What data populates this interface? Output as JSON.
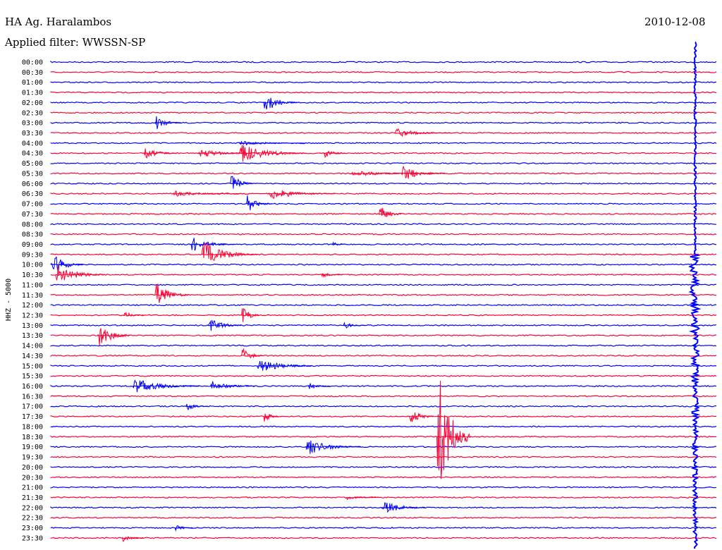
{
  "header": {
    "station": "HA Ag. Haralambos",
    "date": "2010-12-08",
    "filter": "Applied filter: WWSSN-SP"
  },
  "colors": {
    "trace_a": "#0000ff",
    "trace_b": "#ff0033",
    "text": "#000000",
    "background": "#ffffff"
  },
  "chart_data": {
    "type": "line",
    "title": "HA Ag. Haralambos",
    "subtitle": "Applied filter: WWSSN-SP",
    "ylabel": "HHZ - 5000",
    "grid": false,
    "legend": "none",
    "series_colors_alternate": [
      "#0000ff",
      "#ff0033"
    ],
    "categories": [
      "00:00",
      "00:30",
      "01:00",
      "01:30",
      "02:00",
      "02:30",
      "03:00",
      "03:30",
      "04:00",
      "04:30",
      "05:00",
      "05:30",
      "06:00",
      "06:30",
      "07:00",
      "07:30",
      "08:00",
      "08:30",
      "09:00",
      "09:30",
      "10:00",
      "10:30",
      "11:00",
      "11:30",
      "12:00",
      "12:30",
      "13:00",
      "13:30",
      "14:00",
      "14:30",
      "15:00",
      "15:30",
      "16:00",
      "16:30",
      "17:00",
      "17:30",
      "18:00",
      "18:30",
      "19:00",
      "19:30",
      "20:00",
      "20:30",
      "21:00",
      "21:30",
      "22:00",
      "22:30",
      "23:00",
      "23:30"
    ],
    "events": [
      {
        "row": "02:00",
        "minute": 9.6,
        "amp": 1.5,
        "dur": 1.5
      },
      {
        "row": "03:00",
        "minute": 4.7,
        "amp": 1.0,
        "dur": 1.2
      },
      {
        "row": "03:30",
        "minute": 15.5,
        "amp": 0.6,
        "dur": 2.5
      },
      {
        "row": "04:00",
        "minute": 8.5,
        "amp": 0.3,
        "dur": 3
      },
      {
        "row": "04:30",
        "minute": 4.2,
        "amp": 0.8,
        "dur": 1.5
      },
      {
        "row": "04:30",
        "minute": 6.6,
        "amp": 0.6,
        "dur": 2.5
      },
      {
        "row": "04:30",
        "minute": 8.5,
        "amp": 1.3,
        "dur": 3
      },
      {
        "row": "04:30",
        "minute": 12.3,
        "amp": 0.7,
        "dur": 1
      },
      {
        "row": "05:30",
        "minute": 15.8,
        "amp": 1.1,
        "dur": 2
      },
      {
        "row": "05:30",
        "minute": 13.5,
        "amp": 0.4,
        "dur": 4
      },
      {
        "row": "06:00",
        "minute": 8.1,
        "amp": 1.5,
        "dur": 1
      },
      {
        "row": "06:30",
        "minute": 9.8,
        "amp": 0.8,
        "dur": 3
      },
      {
        "row": "06:30",
        "minute": 5.5,
        "amp": 0.4,
        "dur": 3
      },
      {
        "row": "07:00",
        "minute": 8.8,
        "amp": 1.3,
        "dur": 1.2
      },
      {
        "row": "07:30",
        "minute": 14.8,
        "amp": 1.4,
        "dur": 1
      },
      {
        "row": "09:00",
        "minute": 6.3,
        "amp": 1.0,
        "dur": 2
      },
      {
        "row": "09:00",
        "minute": 12.7,
        "amp": 0.4,
        "dur": 0.5
      },
      {
        "row": "09:30",
        "minute": 6.8,
        "amp": 1.8,
        "dur": 2.5
      },
      {
        "row": "10:00",
        "minute": 0.0,
        "amp": 1.6,
        "dur": 1.5
      },
      {
        "row": "10:30",
        "minute": 0.2,
        "amp": 1.5,
        "dur": 2.2
      },
      {
        "row": "10:30",
        "minute": 12.2,
        "amp": 0.4,
        "dur": 1
      },
      {
        "row": "11:30",
        "minute": 4.7,
        "amp": 1.8,
        "dur": 1.5
      },
      {
        "row": "12:30",
        "minute": 8.6,
        "amp": 1.4,
        "dur": 0.8
      },
      {
        "row": "12:30",
        "minute": 3.3,
        "amp": 0.5,
        "dur": 1
      },
      {
        "row": "13:00",
        "minute": 7.1,
        "amp": 1.0,
        "dur": 1.5
      },
      {
        "row": "13:00",
        "minute": 13.2,
        "amp": 0.5,
        "dur": 1
      },
      {
        "row": "13:30",
        "minute": 2.1,
        "amp": 1.8,
        "dur": 1.5
      },
      {
        "row": "14:30",
        "minute": 8.6,
        "amp": 1.2,
        "dur": 1
      },
      {
        "row": "15:00",
        "minute": 9.3,
        "amp": 1.0,
        "dur": 2.5
      },
      {
        "row": "16:00",
        "minute": 3.7,
        "amp": 1.0,
        "dur": 3
      },
      {
        "row": "16:00",
        "minute": 7.2,
        "amp": 0.7,
        "dur": 2
      },
      {
        "row": "16:00",
        "minute": 11.6,
        "amp": 0.5,
        "dur": 1
      },
      {
        "row": "17:00",
        "minute": 6.1,
        "amp": 0.6,
        "dur": 1
      },
      {
        "row": "17:30",
        "minute": 9.6,
        "amp": 0.8,
        "dur": 0.8
      },
      {
        "row": "17:30",
        "minute": 16.1,
        "amp": 1.2,
        "dur": 1.2
      },
      {
        "row": "19:00",
        "minute": 11.5,
        "amp": 1.1,
        "dur": 2.5
      },
      {
        "row": "21:30",
        "minute": 13.3,
        "amp": 0.3,
        "dur": 1.5
      },
      {
        "row": "22:00",
        "minute": 14.9,
        "amp": 1.0,
        "dur": 2
      },
      {
        "row": "23:00",
        "minute": 5.6,
        "amp": 0.5,
        "dur": 0.8
      },
      {
        "row": "23:30",
        "minute": 3.2,
        "amp": 0.5,
        "dur": 1
      },
      {
        "row": "18:30",
        "minute": 17.4,
        "amp": 9.5,
        "dur": 1.5
      }
    ]
  }
}
